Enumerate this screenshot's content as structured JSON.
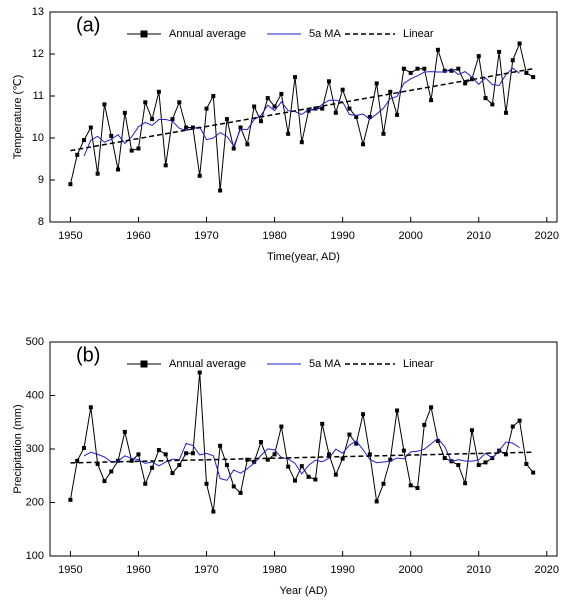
{
  "chart_data": [
    {
      "type": "line",
      "panel_label": "(a)",
      "x_label": "Time(year, AD)",
      "y_label": "Temperature (℃)",
      "x": [
        1950,
        1951,
        1952,
        1953,
        1954,
        1955,
        1956,
        1957,
        1958,
        1959,
        1960,
        1961,
        1962,
        1963,
        1964,
        1965,
        1966,
        1967,
        1968,
        1969,
        1970,
        1971,
        1972,
        1973,
        1974,
        1975,
        1976,
        1977,
        1978,
        1979,
        1980,
        1981,
        1982,
        1983,
        1984,
        1985,
        1986,
        1987,
        1988,
        1989,
        1990,
        1991,
        1992,
        1993,
        1994,
        1995,
        1996,
        1997,
        1998,
        1999,
        2000,
        2001,
        2002,
        2003,
        2004,
        2005,
        2006,
        2007,
        2008,
        2009,
        2010,
        2011,
        2012,
        2013,
        2014,
        2015,
        2016,
        2017,
        2018
      ],
      "series": [
        {
          "name": "Annual average",
          "color": "#000000",
          "marker": "square",
          "values": [
            8.9,
            9.6,
            9.95,
            10.25,
            9.15,
            10.8,
            10.05,
            9.25,
            10.6,
            9.7,
            9.75,
            10.85,
            10.45,
            11.1,
            9.35,
            10.45,
            10.85,
            10.25,
            10.25,
            9.1,
            10.7,
            11.0,
            8.75,
            10.45,
            9.75,
            10.25,
            9.85,
            10.75,
            10.4,
            10.95,
            10.75,
            11.05,
            10.1,
            11.45,
            9.9,
            10.65,
            10.7,
            10.7,
            11.35,
            10.6,
            11.15,
            10.7,
            10.5,
            9.85,
            10.5,
            11.3,
            10.1,
            11.1,
            10.55,
            11.65,
            11.55,
            11.65,
            11.65,
            10.9,
            12.1,
            11.6,
            11.6,
            11.65,
            11.3,
            11.4,
            11.95,
            10.95,
            10.8,
            12.05,
            10.6,
            11.85,
            12.25,
            11.55,
            11.45
          ]
        },
        {
          "name": "5a MA",
          "color": "#2020d0",
          "values": [
            null,
            null,
            9.57,
            9.95,
            10.04,
            9.9,
            9.97,
            10.08,
            9.87,
            10.03,
            10.27,
            10.37,
            10.3,
            10.44,
            10.44,
            10.4,
            10.23,
            10.18,
            10.23,
            10.26,
            9.96,
            10.0,
            10.13,
            10.04,
            9.81,
            10.21,
            10.2,
            10.44,
            10.54,
            10.78,
            10.65,
            10.86,
            10.65,
            10.63,
            10.56,
            10.68,
            10.66,
            10.8,
            10.9,
            10.9,
            10.86,
            10.56,
            10.54,
            10.57,
            10.45,
            10.57,
            10.71,
            10.94,
            10.99,
            11.3,
            11.41,
            11.48,
            11.57,
            11.58,
            11.57,
            11.57,
            11.65,
            11.51,
            11.58,
            11.45,
            11.28,
            11.43,
            11.27,
            11.25,
            11.51,
            11.66,
            11.54,
            null,
            null
          ]
        },
        {
          "name": "Linear",
          "color": "#000000",
          "dashed": true,
          "x": [
            1950,
            2018
          ],
          "values": [
            9.7,
            11.65
          ]
        }
      ],
      "xlim": [
        1947,
        2021.5
      ],
      "xticks": [
        1950,
        1960,
        1970,
        1980,
        1990,
        2000,
        2010,
        2020
      ],
      "ylim": [
        8,
        13
      ],
      "yticks": [
        8,
        9,
        10,
        11,
        12,
        13
      ]
    },
    {
      "type": "line",
      "panel_label": "(b)",
      "x_label": "Year (AD)",
      "y_label": "Precipitation (mm)",
      "x": [
        1950,
        1951,
        1952,
        1953,
        1954,
        1955,
        1956,
        1957,
        1958,
        1959,
        1960,
        1961,
        1962,
        1963,
        1964,
        1965,
        1966,
        1967,
        1968,
        1969,
        1970,
        1971,
        1972,
        1973,
        1974,
        1975,
        1976,
        1977,
        1978,
        1979,
        1980,
        1981,
        1982,
        1983,
        1984,
        1985,
        1986,
        1987,
        1988,
        1989,
        1990,
        1991,
        1992,
        1993,
        1994,
        1995,
        1996,
        1997,
        1998,
        1999,
        2000,
        2001,
        2002,
        2003,
        2004,
        2005,
        2006,
        2007,
        2008,
        2009,
        2010,
        2011,
        2012,
        2013,
        2014,
        2015,
        2016,
        2017,
        2018
      ],
      "series": [
        {
          "name": "Annual average",
          "color": "#000000",
          "marker": "square",
          "values": [
            205,
            278,
            302,
            378,
            272,
            240,
            258,
            278,
            332,
            278,
            290,
            235,
            265,
            298,
            290,
            255,
            270,
            292,
            292,
            443,
            235,
            183,
            306,
            270,
            230,
            218,
            280,
            276,
            313,
            280,
            290,
            342,
            267,
            241,
            268,
            248,
            243,
            347,
            290,
            252,
            282,
            327,
            310,
            365,
            290,
            202,
            235,
            280,
            372,
            297,
            232,
            227,
            345,
            378,
            315,
            283,
            277,
            270,
            236,
            335,
            270,
            275,
            283,
            297,
            290,
            342,
            353,
            272,
            256
          ]
        },
        {
          "name": "5a MA",
          "color": "#2020d0",
          "values": [
            null,
            null,
            287,
            294,
            290,
            285.2,
            276,
            277.2,
            287.2,
            282.6,
            280,
            273.2,
            275.6,
            268.6,
            275.6,
            281,
            279.8,
            310.4,
            306.4,
            289,
            291.8,
            287.4,
            244.8,
            241.4,
            260.8,
            254.8,
            263.4,
            273.4,
            287.8,
            300.2,
            298.4,
            284,
            281.6,
            273.2,
            253.4,
            269.4,
            279.2,
            276,
            282.8,
            299.6,
            292.2,
            307.2,
            314.8,
            298.8,
            280.4,
            274.4,
            275.8,
            277.2,
            283.2,
            281.6,
            294.6,
            295.8,
            299.4,
            309.6,
            319.6,
            304.6,
            276.2,
            280.2,
            277.6,
            277.2,
            279.8,
            292,
            283,
            297.4,
            313,
            310.8,
            302.6,
            null,
            null
          ]
        },
        {
          "name": "Linear",
          "color": "#000000",
          "dashed": true,
          "x": [
            1950,
            2018
          ],
          "values": [
            274,
            294
          ]
        }
      ],
      "xlim": [
        1947,
        2021.5
      ],
      "xticks": [
        1950,
        1960,
        1970,
        1980,
        1990,
        2000,
        2010,
        2020
      ],
      "ylim": [
        100,
        500
      ],
      "yticks": [
        100,
        200,
        300,
        400,
        500
      ]
    }
  ]
}
